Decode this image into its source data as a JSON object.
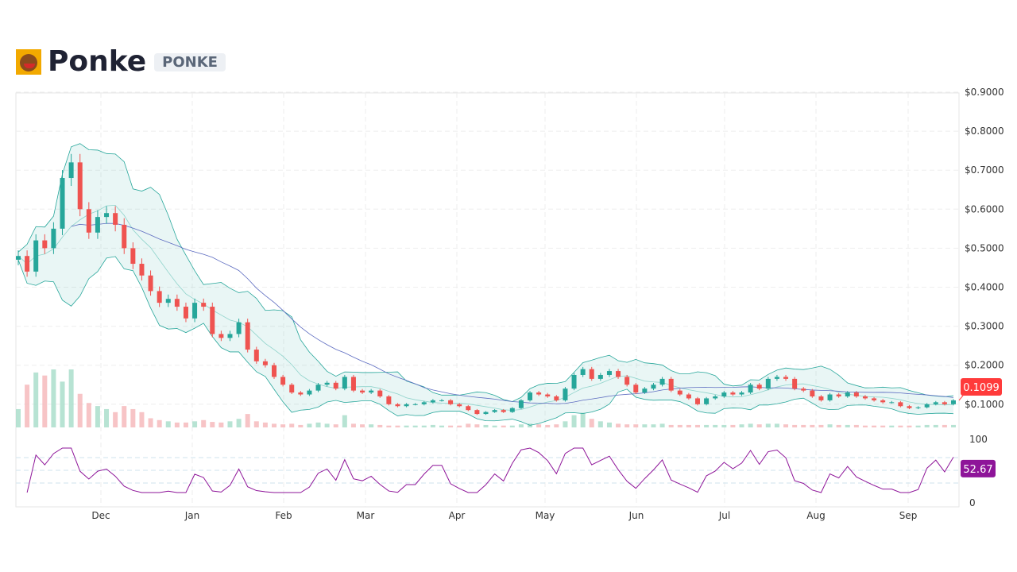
{
  "header": {
    "title": "Ponke",
    "ticker": "PONKE",
    "logo_icon": "ponke-monkey-logo"
  },
  "colors": {
    "up": "#26a69a",
    "down": "#ef5350",
    "band": "#26a69a",
    "ma": "#5c6bc0",
    "rsi": "#8e1599",
    "last_price_bg": "#ff3b3b",
    "rsi_bg": "#8e1599"
  },
  "chart_data": {
    "type": "candlestick",
    "price_axis": {
      "ticks": [
        "$0.9000",
        "$0.8000",
        "$0.7000",
        "$0.6000",
        "$0.5000",
        "$0.4000",
        "$0.3000",
        "$0.2000",
        "$0.1000"
      ],
      "values": [
        0.9,
        0.8,
        0.7,
        0.6,
        0.5,
        0.4,
        0.3,
        0.2,
        0.1
      ],
      "ylim": [
        0.1,
        0.9
      ]
    },
    "x_ticks": [
      "Dec",
      "Jan",
      "Feb",
      "Mar",
      "Apr",
      "May",
      "Jun",
      "Jul",
      "Aug",
      "Sep"
    ],
    "close": [
      0.48,
      0.44,
      0.52,
      0.5,
      0.55,
      0.68,
      0.72,
      0.6,
      0.54,
      0.58,
      0.59,
      0.56,
      0.5,
      0.46,
      0.43,
      0.39,
      0.36,
      0.37,
      0.35,
      0.32,
      0.36,
      0.35,
      0.28,
      0.27,
      0.28,
      0.31,
      0.24,
      0.21,
      0.2,
      0.17,
      0.15,
      0.13,
      0.125,
      0.135,
      0.15,
      0.155,
      0.14,
      0.17,
      0.135,
      0.13,
      0.135,
      0.12,
      0.1,
      0.095,
      0.1,
      0.1,
      0.105,
      0.11,
      0.11,
      0.1,
      0.095,
      0.085,
      0.075,
      0.08,
      0.085,
      0.08,
      0.09,
      0.11,
      0.13,
      0.125,
      0.12,
      0.11,
      0.14,
      0.175,
      0.19,
      0.165,
      0.175,
      0.185,
      0.17,
      0.15,
      0.13,
      0.14,
      0.15,
      0.165,
      0.135,
      0.125,
      0.115,
      0.1,
      0.115,
      0.12,
      0.13,
      0.125,
      0.13,
      0.15,
      0.14,
      0.165,
      0.17,
      0.165,
      0.14,
      0.135,
      0.12,
      0.11,
      0.125,
      0.12,
      0.13,
      0.12,
      0.115,
      0.11,
      0.105,
      0.105,
      0.095,
      0.09,
      0.092,
      0.1,
      0.105,
      0.1,
      0.1099
    ],
    "volume": [
      30,
      70,
      90,
      85,
      95,
      75,
      95,
      55,
      40,
      35,
      30,
      25,
      35,
      30,
      25,
      15,
      12,
      10,
      8,
      8,
      10,
      12,
      9,
      8,
      10,
      14,
      22,
      10,
      8,
      6,
      5,
      6,
      4,
      6,
      8,
      6,
      5,
      20,
      6,
      5,
      5,
      4,
      3,
      3,
      3,
      3,
      3,
      4,
      3,
      3,
      3,
      6,
      5,
      4,
      3,
      3,
      3,
      5,
      6,
      5,
      4,
      5,
      10,
      20,
      24,
      14,
      10,
      8,
      6,
      5,
      5,
      5,
      5,
      6,
      4,
      4,
      4,
      4,
      4,
      4,
      4,
      4,
      5,
      6,
      5,
      6,
      6,
      5,
      4,
      4,
      4,
      4,
      5,
      4,
      4,
      4,
      3,
      3,
      3,
      3,
      3,
      3,
      3,
      4,
      4,
      4,
      4
    ],
    "rsi": {
      "axis_ticks": [
        "100",
        "0"
      ],
      "last": "52.67"
    },
    "last_price": "0.1099"
  }
}
